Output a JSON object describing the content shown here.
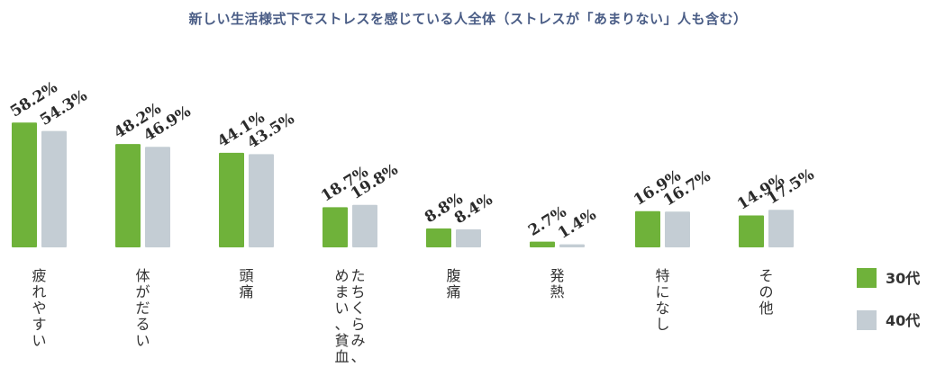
{
  "title": "新しい生活様式下でストレスを感じている人全体（ストレスが「あまりない」人も含む）",
  "colors": {
    "series_30": "#6fb23a",
    "series_40": "#c4cdd4",
    "title": "#4a5d86"
  },
  "chart_data": {
    "type": "bar",
    "title": "新しい生活様式下でストレスを感じている人全体（ストレスが「あまりない」人も含む）",
    "categories": [
      "疲れやすい",
      "体がだるい",
      "頭痛",
      "たちくらみ、めまい、貧血",
      "腹痛",
      "発熱",
      "特になし",
      "その他"
    ],
    "category_lines": [
      [
        "疲れやすい"
      ],
      [
        "体がだるい"
      ],
      [
        "頭痛"
      ],
      [
        "たちくらみ、",
        "めまい、貧血"
      ],
      [
        "腹痛"
      ],
      [
        "発熱"
      ],
      [
        "特になし"
      ],
      [
        "その他"
      ]
    ],
    "series": [
      {
        "name": "30代",
        "values": [
          58.2,
          48.2,
          44.1,
          18.7,
          8.8,
          2.7,
          16.9,
          14.9
        ],
        "labels": [
          "58.2%",
          "48.2%",
          "44.1%",
          "18.7%",
          "8.8%",
          "2.7%",
          "16.9%",
          "14.9%"
        ]
      },
      {
        "name": "40代",
        "values": [
          54.3,
          46.9,
          43.5,
          19.8,
          8.4,
          1.4,
          16.7,
          17.5
        ],
        "labels": [
          "54.3%",
          "46.9%",
          "43.5%",
          "19.8%",
          "8.4%",
          "1.4%",
          "16.7%",
          "17.5%"
        ]
      }
    ],
    "ylim": [
      0,
      60
    ],
    "legend": "right",
    "grid": false
  }
}
